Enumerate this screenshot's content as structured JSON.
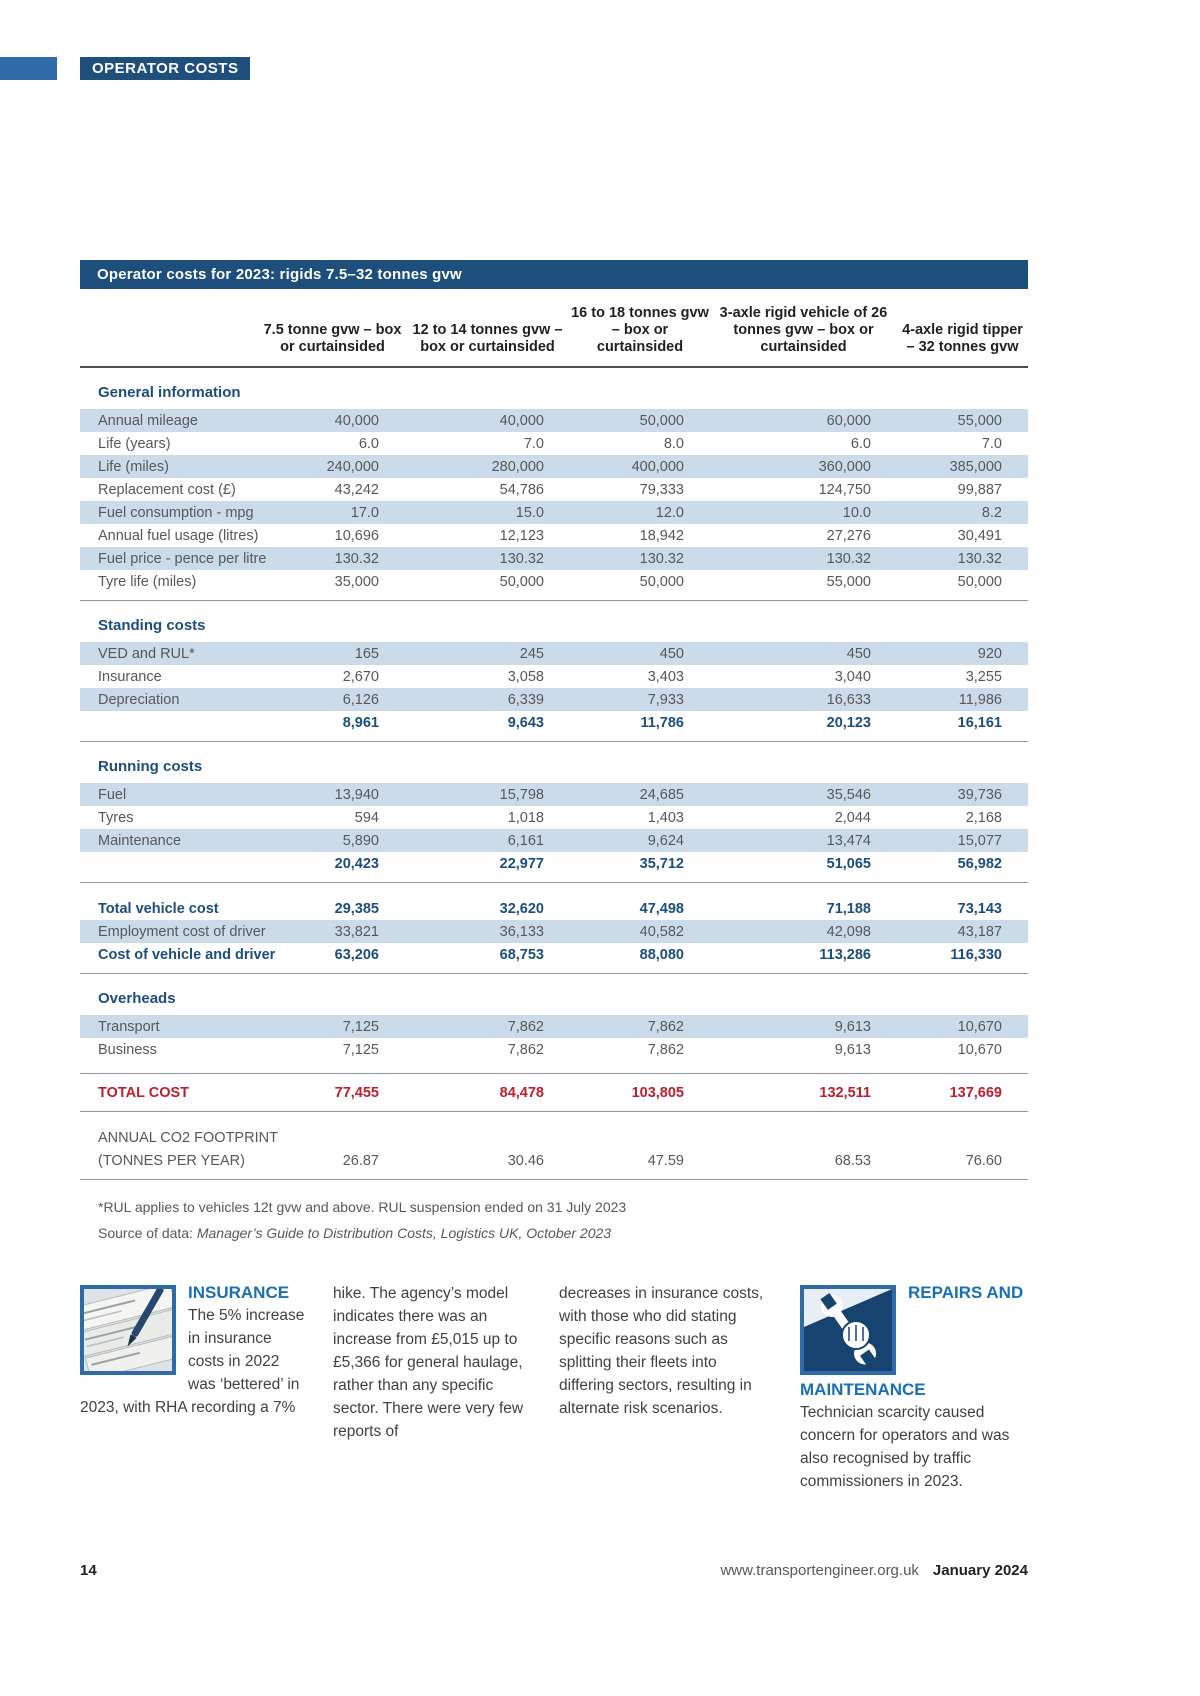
{
  "page": {
    "kicker": "OPERATOR COSTS",
    "footer": {
      "page_number": "14",
      "website": "www.transportengineer.org.uk",
      "issue_date": "January 2024"
    }
  },
  "table": {
    "title": "Operator costs for 2023: rigids 7.5–32 tonnes gvw",
    "columns": [
      "7.5 tonne gvw – box or curtainsided",
      "12 to 14 tonnes gvw – box or curtainsided",
      "16 to 18 tonnes gvw – box or curtainsided",
      "3-axle rigid vehicle of 26 tonnes gvw – box or curtainsided",
      "4-axle rigid tipper – 32 tonnes gvw"
    ],
    "rows": [
      {
        "kind": "section",
        "label": "General information"
      },
      {
        "kind": "data",
        "shade": true,
        "label": "Annual mileage",
        "values": [
          "40,000",
          "40,000",
          "50,000",
          "60,000",
          "55,000"
        ]
      },
      {
        "kind": "data",
        "label": "Life (years)",
        "values": [
          "6.0",
          "7.0",
          "8.0",
          "6.0",
          "7.0"
        ]
      },
      {
        "kind": "data",
        "shade": true,
        "label": "Life (miles)",
        "values": [
          "240,000",
          "280,000",
          "400,000",
          "360,000",
          "385,000"
        ]
      },
      {
        "kind": "data",
        "label": "Replacement cost (£)",
        "values": [
          "43,242",
          "54,786",
          "79,333",
          "124,750",
          "99,887"
        ]
      },
      {
        "kind": "data",
        "shade": true,
        "label": "Fuel consumption - mpg",
        "values": [
          "17.0",
          "15.0",
          "12.0",
          "10.0",
          "8.2"
        ]
      },
      {
        "kind": "data",
        "label": "Annual fuel usage (litres)",
        "values": [
          "10,696",
          "12,123",
          "18,942",
          "27,276",
          "30,491"
        ]
      },
      {
        "kind": "data",
        "shade": true,
        "label": "Fuel price - pence per litre",
        "values": [
          "130.32",
          "130.32",
          "130.32",
          "130.32",
          "130.32"
        ]
      },
      {
        "kind": "data",
        "label": "Tyre life (miles)",
        "cls": "rule-below",
        "values": [
          "35,000",
          "50,000",
          "50,000",
          "55,000",
          "50,000"
        ]
      },
      {
        "kind": "section",
        "label": "Standing costs"
      },
      {
        "kind": "data",
        "shade": true,
        "label": "VED and RUL*",
        "values": [
          "165",
          "245",
          "450",
          "450",
          "920"
        ]
      },
      {
        "kind": "data",
        "label": "Insurance",
        "values": [
          "2,670",
          "3,058",
          "3,403",
          "3,040",
          "3,255"
        ]
      },
      {
        "kind": "data",
        "shade": true,
        "label": "Depreciation",
        "values": [
          "6,126",
          "6,339",
          "7,933",
          "16,633",
          "11,986"
        ]
      },
      {
        "kind": "subtotal",
        "label": "",
        "cls": "rule-below",
        "values": [
          "8,961",
          "9,643",
          "11,786",
          "20,123",
          "16,161"
        ]
      },
      {
        "kind": "section",
        "label": "Running costs"
      },
      {
        "kind": "data",
        "shade": true,
        "label": "Fuel",
        "values": [
          "13,940",
          "15,798",
          "24,685",
          "35,546",
          "39,736"
        ]
      },
      {
        "kind": "data",
        "label": "Tyres",
        "values": [
          "594",
          "1,018",
          "1,403",
          "2,044",
          "2,168"
        ]
      },
      {
        "kind": "data",
        "shade": true,
        "label": "Maintenance",
        "values": [
          "5,890",
          "6,161",
          "9,624",
          "13,474",
          "15,077"
        ]
      },
      {
        "kind": "subtotal",
        "label": "",
        "cls": "rule-below",
        "values": [
          "20,423",
          "22,977",
          "35,712",
          "51,065",
          "56,982"
        ]
      },
      {
        "kind": "bold",
        "label": "Total vehicle cost",
        "cls": "gap-above",
        "values": [
          "29,385",
          "32,620",
          "47,498",
          "71,188",
          "73,143"
        ]
      },
      {
        "kind": "data",
        "shade": true,
        "label": "Employment cost of driver",
        "values": [
          "33,821",
          "36,133",
          "40,582",
          "42,098",
          "43,187"
        ]
      },
      {
        "kind": "bold",
        "label": "Cost of vehicle and driver",
        "cls": "rule-below",
        "values": [
          "63,206",
          "68,753",
          "88,080",
          "113,286",
          "116,330"
        ]
      },
      {
        "kind": "section",
        "label": "Overheads"
      },
      {
        "kind": "data",
        "shade": true,
        "label": "Transport",
        "values": [
          "7,125",
          "7,862",
          "7,862",
          "9,613",
          "10,670"
        ]
      },
      {
        "kind": "data",
        "label": "Business",
        "values": [
          "7,125",
          "7,862",
          "7,862",
          "9,613",
          "10,670"
        ]
      },
      {
        "kind": "red",
        "label": "TOTAL COST",
        "cls": "gap-above-sm rule-above rule-below",
        "values": [
          "77,455",
          "84,478",
          "103,805",
          "132,511",
          "137,669"
        ]
      },
      {
        "kind": "data",
        "label": "ANNUAL CO2 FOOTPRINT",
        "cls": "gap-above",
        "values": [
          "",
          "",
          "",
          "",
          ""
        ]
      },
      {
        "kind": "data",
        "label": "(TONNES PER YEAR)",
        "cls": "rule-below",
        "values": [
          "26.87",
          "30.46",
          "47.59",
          "68.53",
          "76.60"
        ]
      }
    ],
    "footnote": "*RUL applies to vehicles 12t gvw and above. RUL suspension ended on 31 July 2023",
    "source_prefix": "Source of data: ",
    "source_italic": "Manager’s Guide to Distribution Costs, Logistics UK, October 2023"
  },
  "story": {
    "insurance": {
      "heading": "INSURANCE",
      "text": "The 5% increase in insurance costs in 2022 was ‘bettered’ in 2023, with RHA recording a 7%"
    },
    "column2": "hike. The agency’s model indicates there was an increase from £5,015 up to £5,366 for general haulage, rather than any specific sector. There were very few reports of",
    "column3": "decreases in insurance costs, with those who did stating specific reasons such as splitting their fleets into differing sectors, resulting in alternate risk scenarios.",
    "repairs": {
      "heading": "REPAIRS AND MAINTENANCE",
      "text": "Technician scarcity caused concern for operators and was also recognised by traffic commissioners in 2023."
    }
  }
}
